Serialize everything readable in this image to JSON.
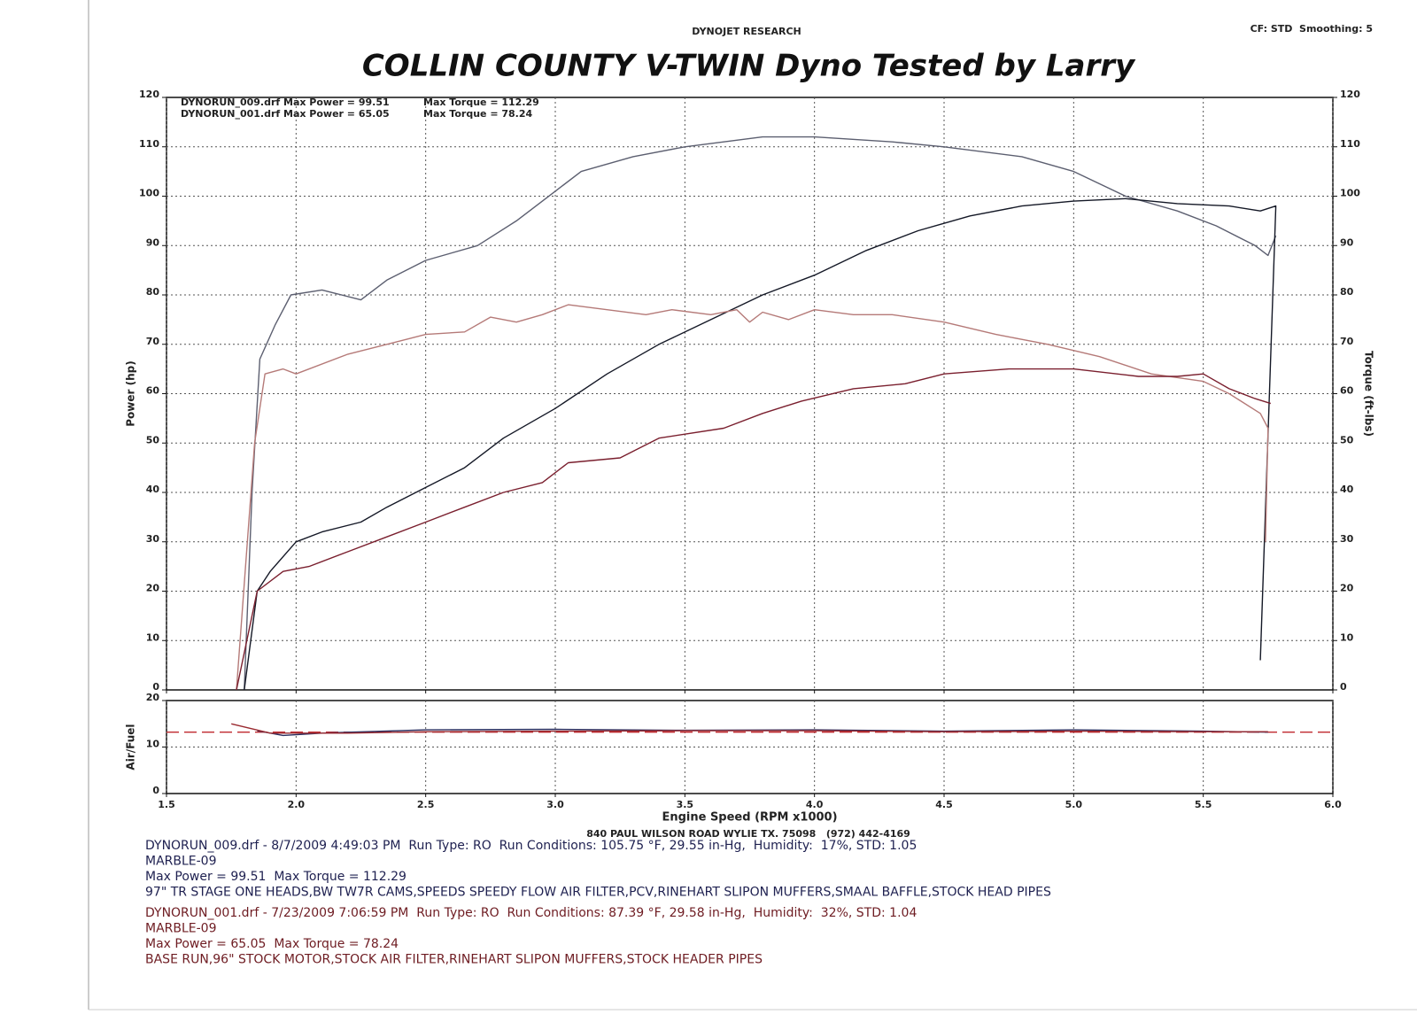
{
  "header": {
    "company": "DYNOJET RESEARCH",
    "settings": "CF: STD  Smoothing: 5"
  },
  "chart_data": [
    {
      "type": "line",
      "title": "COLLIN COUNTY V-TWIN Dyno Tested by Larry",
      "ylabel": "Power (hp)",
      "y2label": "Torque (ft-lbs)",
      "annotations": [
        "DYNORUN_009.drf Max Power = 99.51",
        "Max Torque = 112.29",
        "DYNORUN_001.drf Max Power = 65.05",
        "Max Torque = 78.24"
      ],
      "xlim": [
        1.5,
        6
      ],
      "xticks": [
        1.5,
        2,
        2.5,
        3,
        3.5,
        4,
        4.5,
        5,
        5.5,
        6
      ],
      "ylim": [
        0,
        120
      ],
      "yticks": [
        0,
        10,
        20,
        30,
        40,
        50,
        60,
        70,
        80,
        90,
        100,
        110,
        120
      ],
      "y2lim": [
        0,
        120
      ],
      "y2ticks": [
        0,
        10,
        20,
        30,
        40,
        50,
        60,
        70,
        80,
        90,
        100,
        110,
        120
      ],
      "grid": true,
      "series": [
        {
          "color": "#5c5f70",
          "axis": "y2",
          "x": [
            1.8,
            1.83,
            1.86,
            1.92,
            1.98,
            2.1,
            2.25,
            2.35,
            2.5,
            2.7,
            2.85,
            3.0,
            3.1,
            3.3,
            3.5,
            3.8,
            4.0,
            4.3,
            4.5,
            4.8,
            5.0,
            5.2,
            5.4,
            5.55,
            5.7,
            5.75,
            5.78
          ],
          "values": [
            0,
            40,
            67,
            74,
            80,
            81,
            79,
            83,
            87,
            90,
            95,
            101,
            105,
            108,
            110,
            112,
            112,
            111,
            110,
            108,
            105,
            100,
            97,
            94,
            90,
            88,
            92
          ]
        },
        {
          "color": "#141826",
          "x": [
            1.8,
            1.85,
            1.9,
            2.0,
            2.1,
            2.25,
            2.35,
            2.5,
            2.65,
            2.8,
            3.0,
            3.2,
            3.4,
            3.6,
            3.8,
            4.0,
            4.2,
            4.4,
            4.6,
            4.8,
            5.0,
            5.2,
            5.4,
            5.6,
            5.72,
            5.78,
            5.72
          ],
          "values": [
            0,
            20,
            24,
            30,
            32,
            34,
            37,
            41,
            45,
            51,
            57,
            64,
            70,
            75,
            80,
            84,
            89,
            93,
            96,
            98,
            99,
            99.5,
            98.5,
            98,
            97,
            98,
            6
          ]
        },
        {
          "color": "#b57a78",
          "axis": "y2",
          "x": [
            1.77,
            1.84,
            1.88,
            1.95,
            2.0,
            2.2,
            2.35,
            2.5,
            2.65,
            2.75,
            2.85,
            2.95,
            3.05,
            3.2,
            3.35,
            3.45,
            3.6,
            3.7,
            3.75,
            3.8,
            3.9,
            4.0,
            4.15,
            4.3,
            4.5,
            4.7,
            4.9,
            5.1,
            5.3,
            5.5,
            5.6,
            5.72,
            5.75,
            5.74
          ],
          "values": [
            0,
            50,
            64,
            65,
            64,
            68,
            70,
            72,
            72.5,
            75.5,
            74.5,
            76,
            78,
            77,
            76,
            77,
            76,
            77,
            74.5,
            76.5,
            75,
            77,
            76,
            76,
            74.5,
            72,
            70,
            67.5,
            64,
            62.5,
            60,
            56,
            53,
            30
          ]
        },
        {
          "color": "#7a1f2e",
          "x": [
            1.77,
            1.85,
            1.95,
            2.05,
            2.2,
            2.35,
            2.5,
            2.65,
            2.8,
            2.95,
            3.05,
            3.25,
            3.4,
            3.65,
            3.8,
            3.95,
            4.15,
            4.35,
            4.5,
            4.75,
            5.0,
            5.25,
            5.4,
            5.5,
            5.6,
            5.7,
            5.76
          ],
          "values": [
            0,
            20,
            24,
            25,
            28,
            31,
            34,
            37,
            40,
            42,
            46,
            47,
            51,
            53,
            56,
            58.5,
            61,
            62,
            64,
            65,
            65,
            63.5,
            63.5,
            64,
            61,
            59,
            58
          ]
        }
      ]
    },
    {
      "type": "line",
      "ylabel": "Air/Fuel",
      "xlabel": "Engine Speed (RPM x1000)",
      "xlim": [
        1.5,
        6
      ],
      "xticks": [
        1.5,
        {
          "value": 2,
          "label": "2.0"
        },
        2.5,
        {
          "value": 3,
          "label": "3.0"
        },
        3.5,
        {
          "value": 4,
          "label": "4.0"
        },
        4.5,
        {
          "value": 5,
          "label": "5.0"
        },
        5.5,
        {
          "value": 6,
          "label": "6.0"
        }
      ],
      "ylim": [
        0,
        20
      ],
      "yticks": [
        0,
        10,
        20
      ],
      "grid": true,
      "reference": 13.2,
      "reference_color": "#c0282e",
      "series": [
        {
          "color": "#2a2f60",
          "x": [
            1.85,
            1.95,
            2.1,
            2.5,
            3.0,
            3.5,
            4.0,
            4.5,
            5.0,
            5.5,
            5.75
          ],
          "values": [
            13.5,
            12.5,
            13,
            13.7,
            13.8,
            13.6,
            13.7,
            13.4,
            13.7,
            13.4,
            13.2
          ]
        },
        {
          "color": "#9a2a30",
          "x": [
            1.75,
            1.9,
            2.2,
            2.5,
            3.0,
            3.5,
            4.0,
            4.5,
            5.0,
            5.5,
            5.75
          ],
          "values": [
            15,
            13,
            13,
            13.3,
            13.4,
            13.5,
            13.5,
            13.3,
            13.4,
            13.3,
            13.3
          ]
        }
      ]
    }
  ],
  "address": "840 PAUL WILSON ROAD WYLIE TX. 75098   (972) 442-4169",
  "footer": {
    "runs": [
      {
        "color": "#1e2050",
        "lines": [
          "DYNORUN_009.drf - 8/7/2009 4:49:03 PM  Run Type: RO  Run Conditions: 105.75 °F, 29.55 in-Hg,  Humidity:  17%, STD: 1.05",
          "MARBLE-09",
          "Max Power = 99.51  Max Torque = 112.29",
          "97\" TR STAGE ONE HEADS,BW TW7R CAMS,SPEEDS SPEEDY FLOW AIR FILTER,PCV,RINEHART SLIPON MUFFERS,SMAAL BAFFLE,STOCK HEAD PIPES"
        ]
      },
      {
        "color": "#6e1c22",
        "lines": [
          "DYNORUN_001.drf - 7/23/2009 7:06:59 PM  Run Type: RO  Run Conditions: 87.39 °F, 29.58 in-Hg,  Humidity:  32%, STD: 1.04",
          "MARBLE-09",
          "Max Power = 65.05  Max Torque = 78.24",
          "BASE RUN,96\" STOCK MOTOR,STOCK AIR FILTER,RINEHART SLIPON MUFFERS,STOCK HEADER PIPES"
        ]
      }
    ]
  }
}
